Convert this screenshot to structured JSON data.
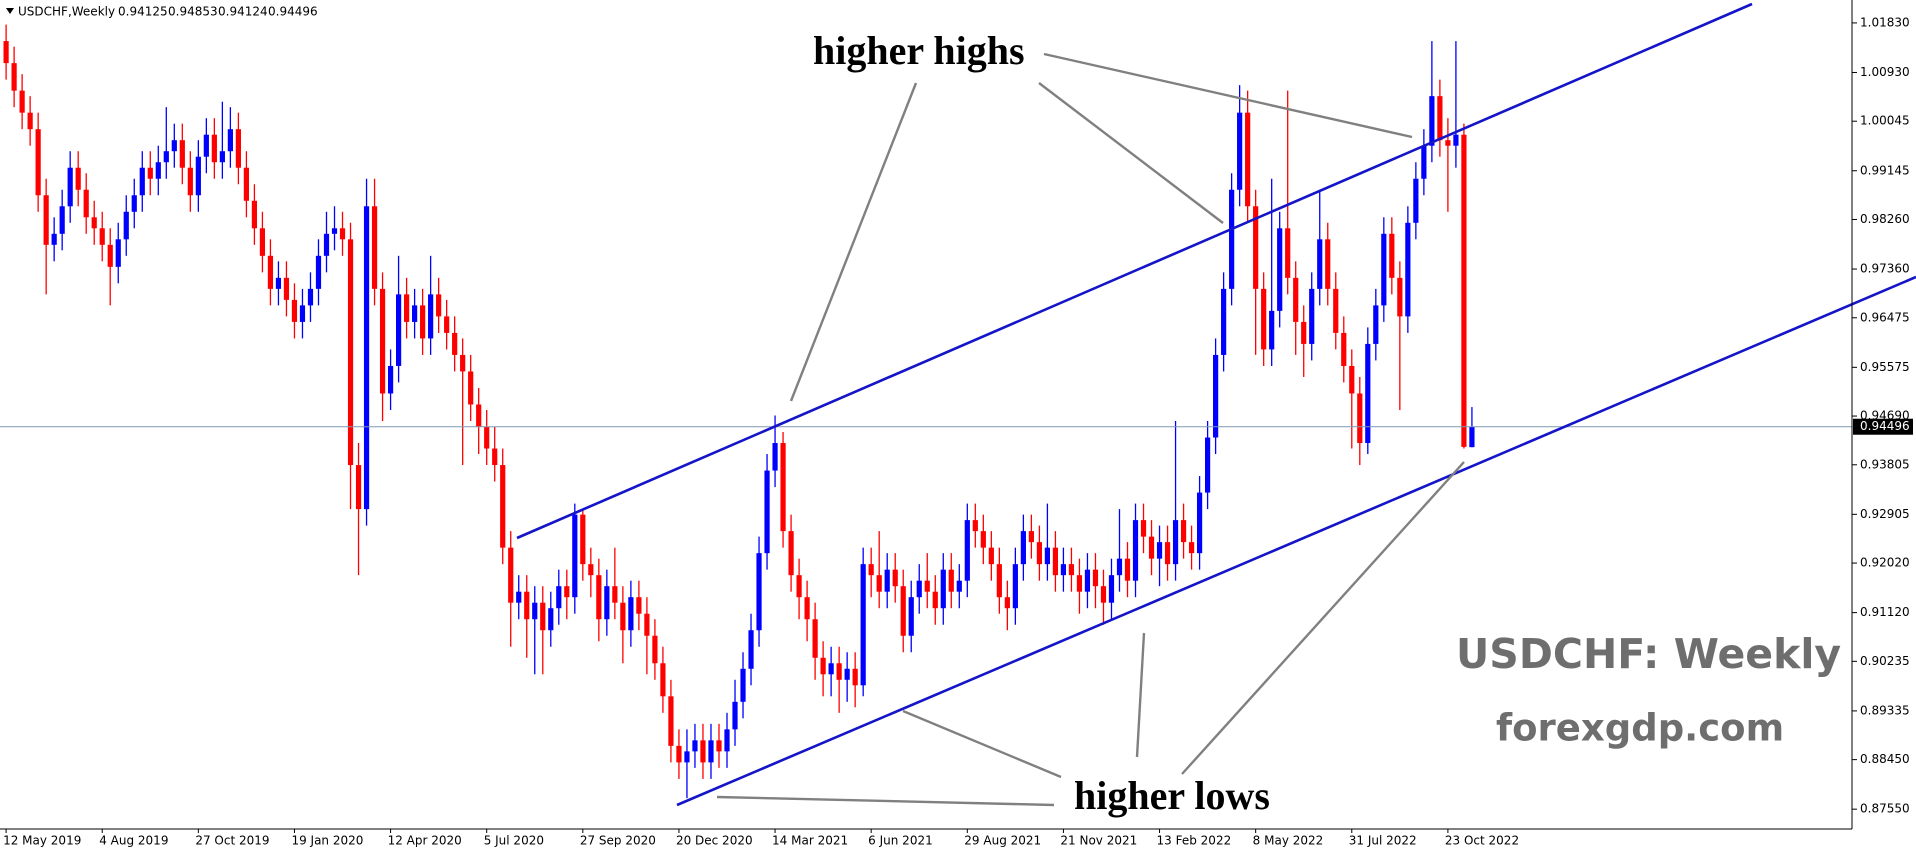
{
  "chart_data": {
    "type": "candlestick",
    "title": "USDCHF,Weekly",
    "annotations": [
      "higher highs",
      "higher lows"
    ],
    "watermark": [
      "USDCHF: Weekly",
      "forexgdp.com"
    ],
    "bull_color": "#0000ff",
    "bear_color": "#ff0000",
    "channel_color": "#1414c8",
    "ylim": [
      0.8719,
      1.0221
    ],
    "yticks": [
      {
        "value": 1.0183,
        "label": "1.01830"
      },
      {
        "value": 1.0093,
        "label": "1.00930"
      },
      1.00045,
      0.99145,
      {
        "value": 0.9826,
        "label": "0.98260"
      },
      {
        "value": 0.9736,
        "label": "0.97360"
      },
      0.96475,
      0.95575,
      {
        "value": 0.9469,
        "label": "0.94690"
      },
      0.93805,
      0.92905,
      {
        "value": 0.9202,
        "label": "0.92020"
      },
      {
        "value": 0.9112,
        "label": "0.91120"
      },
      0.90235,
      0.89335,
      {
        "value": 0.8845,
        "label": "0.88450"
      },
      {
        "value": 0.8755,
        "label": "0.87550"
      }
    ],
    "categories": [
      "12 May 2019",
      null,
      null,
      null,
      null,
      null,
      null,
      null,
      null,
      null,
      null,
      null,
      "4 Aug 2019",
      null,
      null,
      null,
      null,
      null,
      null,
      null,
      null,
      null,
      null,
      null,
      "27 Oct 2019",
      null,
      null,
      null,
      null,
      null,
      null,
      null,
      null,
      null,
      null,
      null,
      "19 Jan 2020",
      null,
      null,
      null,
      null,
      null,
      null,
      null,
      null,
      null,
      null,
      null,
      "12 Apr 2020",
      null,
      null,
      null,
      null,
      null,
      null,
      null,
      null,
      null,
      null,
      null,
      "5 Jul 2020",
      null,
      null,
      null,
      null,
      null,
      null,
      null,
      null,
      null,
      null,
      null,
      "27 Sep 2020",
      null,
      null,
      null,
      null,
      null,
      null,
      null,
      null,
      null,
      null,
      null,
      "20 Dec 2020",
      null,
      null,
      null,
      null,
      null,
      null,
      null,
      null,
      null,
      null,
      null,
      "14 Mar 2021",
      null,
      null,
      null,
      null,
      null,
      null,
      null,
      null,
      null,
      null,
      null,
      "6 Jun 2021",
      null,
      null,
      null,
      null,
      null,
      null,
      null,
      null,
      null,
      null,
      null,
      "29 Aug 2021",
      null,
      null,
      null,
      null,
      null,
      null,
      null,
      null,
      null,
      null,
      null,
      "21 Nov 2021",
      null,
      null,
      null,
      null,
      null,
      null,
      null,
      null,
      null,
      null,
      null,
      "13 Feb 2022",
      null,
      null,
      null,
      null,
      null,
      null,
      null,
      null,
      null,
      null,
      null,
      "8 May 2022",
      null,
      null,
      null,
      null,
      null,
      null,
      null,
      null,
      null,
      null,
      null,
      "31 Jul 2022",
      null,
      null,
      null,
      null,
      null,
      null,
      null,
      null,
      null,
      null,
      null,
      "23 Oct 2022",
      null,
      null,
      null
    ],
    "ohlc": [
      [
        1.015,
        1.018,
        1.008,
        1.011
      ],
      [
        1.011,
        1.014,
        1.003,
        1.006
      ],
      [
        1.006,
        1.009,
        0.999,
        1.002
      ],
      [
        1.002,
        1.005,
        0.996,
        0.999
      ],
      [
        0.999,
        1.002,
        0.984,
        0.987
      ],
      [
        0.987,
        0.99,
        0.969,
        0.978
      ],
      [
        0.978,
        0.983,
        0.975,
        0.98
      ],
      [
        0.98,
        0.988,
        0.977,
        0.985
      ],
      [
        0.985,
        0.995,
        0.982,
        0.992
      ],
      [
        0.992,
        0.995,
        0.985,
        0.988
      ],
      [
        0.988,
        0.991,
        0.98,
        0.983
      ],
      [
        0.983,
        0.986,
        0.978,
        0.981
      ],
      [
        0.981,
        0.984,
        0.975,
        0.978
      ],
      [
        0.978,
        0.981,
        0.967,
        0.974
      ],
      [
        0.974,
        0.982,
        0.971,
        0.979
      ],
      [
        0.979,
        0.987,
        0.976,
        0.984
      ],
      [
        0.984,
        0.99,
        0.981,
        0.987
      ],
      [
        0.987,
        0.995,
        0.984,
        0.992
      ],
      [
        0.992,
        0.995,
        0.987,
        0.99
      ],
      [
        0.99,
        0.996,
        0.987,
        0.993
      ],
      [
        0.993,
        1.003,
        0.99,
        0.995
      ],
      [
        0.995,
        1.0,
        0.992,
        0.997
      ],
      [
        0.997,
        1.0,
        0.989,
        0.992
      ],
      [
        0.992,
        0.995,
        0.984,
        0.987
      ],
      [
        0.987,
        0.997,
        0.984,
        0.994
      ],
      [
        0.994,
        1.001,
        0.991,
        0.998
      ],
      [
        0.998,
        1.001,
        0.99,
        0.993
      ],
      [
        0.993,
        1.004,
        0.99,
        0.995
      ],
      [
        0.995,
        1.003,
        0.992,
        0.999
      ],
      [
        0.999,
        1.002,
        0.989,
        0.992
      ],
      [
        0.992,
        0.995,
        0.983,
        0.986
      ],
      [
        0.986,
        0.989,
        0.978,
        0.981
      ],
      [
        0.981,
        0.984,
        0.973,
        0.976
      ],
      [
        0.976,
        0.979,
        0.967,
        0.97
      ],
      [
        0.97,
        0.975,
        0.967,
        0.972
      ],
      [
        0.972,
        0.975,
        0.965,
        0.968
      ],
      [
        0.968,
        0.971,
        0.961,
        0.964
      ],
      [
        0.964,
        0.97,
        0.961,
        0.967
      ],
      [
        0.967,
        0.973,
        0.964,
        0.97
      ],
      [
        0.97,
        0.979,
        0.967,
        0.976
      ],
      [
        0.976,
        0.984,
        0.973,
        0.98
      ],
      [
        0.98,
        0.985,
        0.977,
        0.981
      ],
      [
        0.981,
        0.984,
        0.976,
        0.979
      ],
      [
        0.979,
        0.982,
        0.93,
        0.938
      ],
      [
        0.938,
        0.942,
        0.918,
        0.93
      ],
      [
        0.93,
        0.99,
        0.927,
        0.985
      ],
      [
        0.985,
        0.99,
        0.967,
        0.97
      ],
      [
        0.97,
        0.973,
        0.946,
        0.951
      ],
      [
        0.951,
        0.959,
        0.948,
        0.956
      ],
      [
        0.956,
        0.976,
        0.953,
        0.969
      ],
      [
        0.969,
        0.972,
        0.961,
        0.964
      ],
      [
        0.964,
        0.97,
        0.961,
        0.967
      ],
      [
        0.967,
        0.97,
        0.958,
        0.961
      ],
      [
        0.961,
        0.976,
        0.958,
        0.969
      ],
      [
        0.969,
        0.972,
        0.962,
        0.965
      ],
      [
        0.965,
        0.968,
        0.959,
        0.962
      ],
      [
        0.962,
        0.965,
        0.955,
        0.958
      ],
      [
        0.958,
        0.961,
        0.938,
        0.955
      ],
      [
        0.955,
        0.958,
        0.946,
        0.949
      ],
      [
        0.949,
        0.952,
        0.94,
        0.945
      ],
      [
        0.945,
        0.948,
        0.938,
        0.941
      ],
      [
        0.941,
        0.945,
        0.935,
        0.938
      ],
      [
        0.938,
        0.941,
        0.92,
        0.923
      ],
      [
        0.923,
        0.926,
        0.905,
        0.913
      ],
      [
        0.913,
        0.918,
        0.91,
        0.915
      ],
      [
        0.915,
        0.918,
        0.903,
        0.91
      ],
      [
        0.91,
        0.916,
        0.9,
        0.913
      ],
      [
        0.913,
        0.916,
        0.9,
        0.908
      ],
      [
        0.908,
        0.915,
        0.905,
        0.912
      ],
      [
        0.912,
        0.919,
        0.909,
        0.916
      ],
      [
        0.916,
        0.919,
        0.91,
        0.914
      ],
      [
        0.914,
        0.931,
        0.911,
        0.929
      ],
      [
        0.929,
        0.93,
        0.917,
        0.92
      ],
      [
        0.92,
        0.923,
        0.914,
        0.918
      ],
      [
        0.918,
        0.921,
        0.906,
        0.91
      ],
      [
        0.91,
        0.919,
        0.907,
        0.916
      ],
      [
        0.916,
        0.923,
        0.91,
        0.913
      ],
      [
        0.913,
        0.916,
        0.902,
        0.908
      ],
      [
        0.908,
        0.917,
        0.905,
        0.914
      ],
      [
        0.914,
        0.917,
        0.908,
        0.911
      ],
      [
        0.911,
        0.914,
        0.9,
        0.907
      ],
      [
        0.907,
        0.91,
        0.899,
        0.902
      ],
      [
        0.902,
        0.905,
        0.893,
        0.896
      ],
      [
        0.896,
        0.899,
        0.884,
        0.887
      ],
      [
        0.887,
        0.89,
        0.881,
        0.884
      ],
      [
        0.884,
        0.89,
        0.8775,
        0.886
      ],
      [
        0.886,
        0.891,
        0.883,
        0.888
      ],
      [
        0.888,
        0.891,
        0.881,
        0.884
      ],
      [
        0.884,
        0.891,
        0.881,
        0.888
      ],
      [
        0.888,
        0.891,
        0.883,
        0.886
      ],
      [
        0.886,
        0.893,
        0.883,
        0.89
      ],
      [
        0.89,
        0.899,
        0.887,
        0.895
      ],
      [
        0.895,
        0.904,
        0.892,
        0.901
      ],
      [
        0.901,
        0.911,
        0.898,
        0.908
      ],
      [
        0.908,
        0.925,
        0.905,
        0.922
      ],
      [
        0.922,
        0.94,
        0.919,
        0.937
      ],
      [
        0.937,
        0.947,
        0.934,
        0.942
      ],
      [
        0.942,
        0.944,
        0.923,
        0.926
      ],
      [
        0.926,
        0.929,
        0.915,
        0.918
      ],
      [
        0.918,
        0.921,
        0.91,
        0.914
      ],
      [
        0.914,
        0.917,
        0.906,
        0.91
      ],
      [
        0.91,
        0.913,
        0.899,
        0.903
      ],
      [
        0.903,
        0.906,
        0.896,
        0.9
      ],
      [
        0.9,
        0.905,
        0.896,
        0.902
      ],
      [
        0.902,
        0.905,
        0.893,
        0.899
      ],
      [
        0.899,
        0.904,
        0.895,
        0.901
      ],
      [
        0.901,
        0.904,
        0.894,
        0.898
      ],
      [
        0.898,
        0.923,
        0.896,
        0.92
      ],
      [
        0.92,
        0.923,
        0.914,
        0.918
      ],
      [
        0.918,
        0.926,
        0.912,
        0.915
      ],
      [
        0.915,
        0.922,
        0.912,
        0.919
      ],
      [
        0.919,
        0.922,
        0.913,
        0.916
      ],
      [
        0.916,
        0.919,
        0.904,
        0.907
      ],
      [
        0.907,
        0.917,
        0.904,
        0.914
      ],
      [
        0.914,
        0.92,
        0.911,
        0.917
      ],
      [
        0.917,
        0.922,
        0.912,
        0.915
      ],
      [
        0.915,
        0.918,
        0.909,
        0.912
      ],
      [
        0.912,
        0.922,
        0.909,
        0.919
      ],
      [
        0.919,
        0.922,
        0.912,
        0.915
      ],
      [
        0.915,
        0.92,
        0.912,
        0.917
      ],
      [
        0.917,
        0.931,
        0.914,
        0.928
      ],
      [
        0.928,
        0.931,
        0.923,
        0.926
      ],
      [
        0.926,
        0.929,
        0.92,
        0.923
      ],
      [
        0.923,
        0.926,
        0.917,
        0.92
      ],
      [
        0.92,
        0.923,
        0.911,
        0.914
      ],
      [
        0.914,
        0.917,
        0.908,
        0.912
      ],
      [
        0.912,
        0.923,
        0.909,
        0.92
      ],
      [
        0.92,
        0.929,
        0.917,
        0.926
      ],
      [
        0.926,
        0.929,
        0.921,
        0.924
      ],
      [
        0.924,
        0.927,
        0.917,
        0.92
      ],
      [
        0.92,
        0.931,
        0.917,
        0.923
      ],
      [
        0.923,
        0.926,
        0.915,
        0.918
      ],
      [
        0.918,
        0.923,
        0.915,
        0.92
      ],
      [
        0.92,
        0.923,
        0.915,
        0.918
      ],
      [
        0.918,
        0.921,
        0.911,
        0.915
      ],
      [
        0.915,
        0.922,
        0.912,
        0.919
      ],
      [
        0.919,
        0.922,
        0.912,
        0.916
      ],
      [
        0.916,
        0.919,
        0.909,
        0.913
      ],
      [
        0.913,
        0.921,
        0.91,
        0.918
      ],
      [
        0.918,
        0.93,
        0.915,
        0.921
      ],
      [
        0.921,
        0.924,
        0.914,
        0.917
      ],
      [
        0.917,
        0.931,
        0.914,
        0.928
      ],
      [
        0.928,
        0.931,
        0.922,
        0.925
      ],
      [
        0.925,
        0.928,
        0.918,
        0.921
      ],
      [
        0.921,
        0.927,
        0.916,
        0.924
      ],
      [
        0.924,
        0.927,
        0.917,
        0.92
      ],
      [
        0.92,
        0.946,
        0.917,
        0.928
      ],
      [
        0.928,
        0.931,
        0.921,
        0.924
      ],
      [
        0.924,
        0.927,
        0.919,
        0.922
      ],
      [
        0.922,
        0.936,
        0.919,
        0.933
      ],
      [
        0.933,
        0.946,
        0.93,
        0.943
      ],
      [
        0.943,
        0.961,
        0.94,
        0.958
      ],
      [
        0.958,
        0.973,
        0.955,
        0.97
      ],
      [
        0.97,
        0.991,
        0.967,
        0.988
      ],
      [
        0.988,
        1.007,
        0.985,
        1.002
      ],
      [
        1.002,
        1.006,
        0.982,
        0.985
      ],
      [
        0.985,
        0.988,
        0.958,
        0.97
      ],
      [
        0.97,
        0.973,
        0.956,
        0.959
      ],
      [
        0.959,
        0.99,
        0.956,
        0.966
      ],
      [
        0.966,
        0.984,
        0.963,
        0.981
      ],
      [
        0.981,
        1.006,
        0.969,
        0.972
      ],
      [
        0.972,
        0.975,
        0.958,
        0.964
      ],
      [
        0.964,
        0.967,
        0.954,
        0.96
      ],
      [
        0.96,
        0.973,
        0.957,
        0.97
      ],
      [
        0.97,
        0.988,
        0.967,
        0.979
      ],
      [
        0.979,
        0.982,
        0.967,
        0.97
      ],
      [
        0.97,
        0.973,
        0.959,
        0.962
      ],
      [
        0.962,
        0.965,
        0.953,
        0.956
      ],
      [
        0.956,
        0.959,
        0.941,
        0.951
      ],
      [
        0.951,
        0.954,
        0.938,
        0.942
      ],
      [
        0.942,
        0.963,
        0.94,
        0.96
      ],
      [
        0.96,
        0.97,
        0.957,
        0.967
      ],
      [
        0.967,
        0.983,
        0.964,
        0.98
      ],
      [
        0.98,
        0.983,
        0.969,
        0.972
      ],
      [
        0.972,
        0.975,
        0.948,
        0.965
      ],
      [
        0.965,
        0.985,
        0.962,
        0.982
      ],
      [
        0.982,
        0.993,
        0.979,
        0.99
      ],
      [
        0.99,
        0.999,
        0.987,
        0.996
      ],
      [
        0.996,
        1.015,
        0.993,
        1.005
      ],
      [
        1.005,
        1.008,
        0.994,
        0.997
      ],
      [
        0.997,
        1.001,
        0.984,
        0.996
      ],
      [
        0.996,
        1.015,
        0.992,
        0.998
      ],
      [
        0.998,
        1.0,
        0.941,
        0.9413
      ],
      [
        0.94125,
        0.94853,
        0.94124,
        0.94496
      ]
    ]
  }
}
